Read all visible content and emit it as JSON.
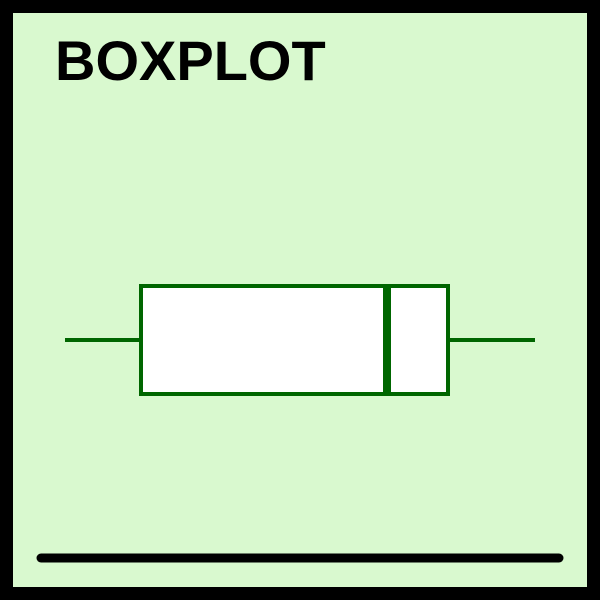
{
  "title": "BOXPLOT",
  "colors": {
    "background": "#d9f9cf",
    "frame": "#000000",
    "plot_stroke": "#006600",
    "box_fill": "#ffffff",
    "baseline": "#000000"
  },
  "icon": "boxplot-icon"
}
